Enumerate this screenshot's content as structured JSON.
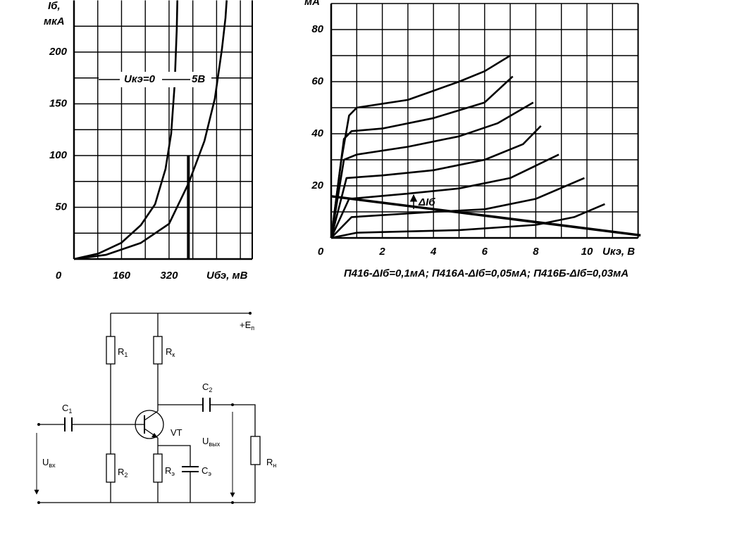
{
  "chart_data": [
    {
      "type": "line",
      "y_label": "Iб,",
      "y_unit": "мкА",
      "x_label": "Uбэ, мВ",
      "xlim": [
        0,
        600
      ],
      "ylim": [
        0,
        250
      ],
      "xticks": [
        0,
        160,
        320
      ],
      "yticks": [
        50,
        100,
        150,
        200
      ],
      "xgrid": [
        0,
        80,
        160,
        240,
        320,
        400,
        480,
        560
      ],
      "ygrid": [
        0,
        25,
        50,
        75,
        100,
        125,
        150,
        175,
        200,
        225
      ],
      "grid": true,
      "series": [
        {
          "name": "Uкэ=0",
          "color": "#000000",
          "x": [
            0,
            83,
            159,
            225,
            273,
            308,
            327,
            339,
            346,
            348
          ],
          "values": [
            0,
            5.4,
            15.6,
            32.7,
            53,
            87,
            121,
            169,
            223,
            250
          ]
        },
        {
          "name": "5В",
          "color": "#000000",
          "x": [
            0,
            107,
            225,
            320,
            386,
            439,
            474,
            498,
            510,
            514
          ],
          "values": [
            0,
            4,
            15.6,
            34,
            73.5,
            114,
            155,
            203,
            233,
            250
          ]
        }
      ],
      "marker": {
        "x": 385,
        "y": 100
      }
    },
    {
      "type": "line",
      "y_unit": "мА",
      "x_label": "Uкэ, В",
      "caption": "П416-ΔIб=0,1мА; П416А-ΔIб=0,05мА; П416Б-ΔIб=0,03мА",
      "annotation": "ΔIб",
      "xlim": [
        0,
        12
      ],
      "ylim": [
        0,
        90
      ],
      "xticks": [
        0,
        2,
        4,
        6,
        8,
        10
      ],
      "yticks": [
        20,
        40,
        60,
        80
      ],
      "xgrid": [
        0,
        1,
        2,
        3,
        4,
        5,
        6,
        7,
        8,
        9,
        10,
        11,
        12
      ],
      "ygrid": [
        0,
        10,
        20,
        30,
        40,
        50,
        60,
        70,
        80,
        90
      ],
      "grid": true,
      "series": [
        {
          "color": "#000000",
          "x": [
            0,
            0.4,
            0.7,
            1,
            3,
            5,
            6,
            7
          ],
          "values": [
            0,
            30,
            47,
            50,
            53,
            60,
            64,
            70
          ]
        },
        {
          "color": "#000000",
          "x": [
            0,
            0.5,
            0.8,
            2,
            4,
            6,
            7.1
          ],
          "values": [
            0,
            38,
            41,
            42,
            46,
            52,
            62
          ]
        },
        {
          "color": "#000000",
          "x": [
            0,
            0.5,
            1,
            3,
            5,
            6.5,
            7.9
          ],
          "values": [
            0,
            30,
            32,
            35,
            39,
            44,
            52
          ]
        },
        {
          "color": "#000000",
          "x": [
            0,
            0.6,
            2,
            4,
            6,
            7.5,
            8.2
          ],
          "values": [
            0,
            23,
            24,
            26,
            30,
            36,
            43
          ]
        },
        {
          "color": "#000000",
          "x": [
            0,
            0.7,
            3,
            5,
            7,
            8.9
          ],
          "values": [
            0,
            15,
            17,
            19,
            23,
            32
          ]
        },
        {
          "color": "#000000",
          "x": [
            0,
            0.8,
            4,
            6,
            8,
            9.9
          ],
          "values": [
            0,
            8,
            10,
            11,
            15,
            23
          ]
        },
        {
          "color": "#000000",
          "x": [
            0,
            1,
            5,
            8,
            9.5,
            10.7
          ],
          "values": [
            0,
            2,
            3,
            5,
            8,
            13
          ]
        },
        {
          "color": "#000000",
          "x": [
            0,
            12.1
          ],
          "values": [
            16,
            1
          ],
          "width": 3.5
        }
      ]
    }
  ],
  "circuit": {
    "labels": [
      {
        "sym": "+E",
        "sub": "п"
      },
      {
        "sym": "R",
        "sub": "1"
      },
      {
        "sym": "R",
        "sub": "к"
      },
      {
        "sym": "C",
        "sub": "2"
      },
      {
        "sym": "C",
        "sub": "1"
      },
      {
        "sym": "VT",
        "sub": ""
      },
      {
        "sym": "U",
        "sub": "вых"
      },
      {
        "sym": "U",
        "sub": "вх"
      },
      {
        "sym": "R",
        "sub": "2"
      },
      {
        "sym": "R",
        "sub": "э"
      },
      {
        "sym": "C",
        "sub": "э"
      },
      {
        "sym": "R",
        "sub": "н"
      }
    ]
  }
}
